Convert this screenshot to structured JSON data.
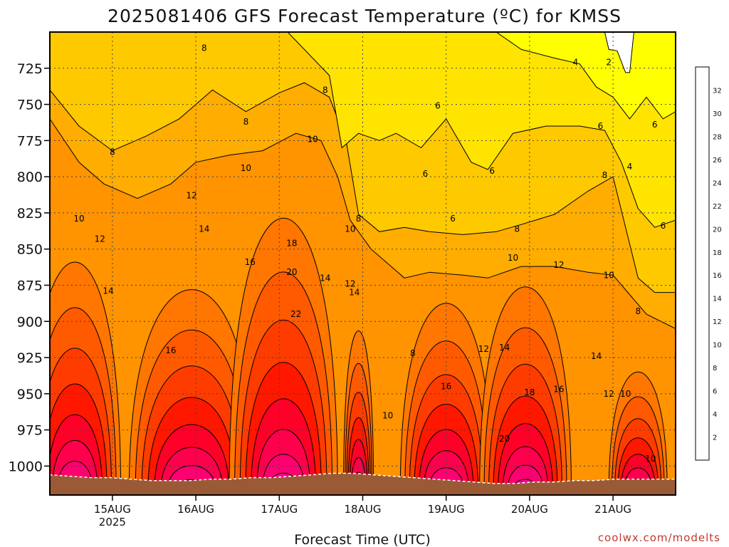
{
  "chart_data": {
    "type": "heatmap",
    "title": "2025081406 GFS Forecast Temperature (ºC) for KMSS",
    "xlabel": "Forecast Time (UTC)",
    "credit": "coolwx.com/modelts",
    "y_ticks": [
      725,
      750,
      775,
      800,
      825,
      850,
      875,
      900,
      925,
      950,
      975,
      1000
    ],
    "y_range_hpa": [
      1020,
      700
    ],
    "x_ticks": [
      {
        "label": "15AUG",
        "sub": "2025",
        "day": 1.0
      },
      {
        "label": "16AUG",
        "sub": "",
        "day": 2.0
      },
      {
        "label": "17AUG",
        "sub": "",
        "day": 3.0
      },
      {
        "label": "18AUG",
        "sub": "",
        "day": 4.0
      },
      {
        "label": "19AUG",
        "sub": "",
        "day": 5.0
      },
      {
        "label": "20AUG",
        "sub": "",
        "day": 6.0
      },
      {
        "label": "21AUG",
        "sub": "",
        "day": 7.0
      }
    ],
    "x_range_day": [
      0.25,
      7.75
    ],
    "colorbar": {
      "levels": [
        2,
        4,
        6,
        8,
        10,
        12,
        14,
        16,
        18,
        20,
        22,
        24,
        26,
        28,
        30,
        32
      ],
      "colors": [
        "#ffffff",
        "#ffff00",
        "#ffe400",
        "#ffc900",
        "#ffad00",
        "#ff9300",
        "#ff7600",
        "#ff5a00",
        "#ff3c00",
        "#ff1700",
        "#ff0028",
        "#ff004c",
        "#ff0070",
        "#ff0092",
        "#ff00b4",
        "#ff00d8",
        "#ff00ff"
      ]
    },
    "surface_hpa": [
      1006,
      1007,
      1008,
      1008,
      1009,
      1010,
      1010,
      1010,
      1009,
      1009,
      1008,
      1008,
      1007,
      1006,
      1005,
      1005,
      1006,
      1007,
      1008,
      1009,
      1010,
      1011,
      1012,
      1012,
      1011,
      1011,
      1010,
      1010,
      1009,
      1009,
      1009,
      1009
    ],
    "contour_labels": [
      {
        "text": "8",
        "day": 1.0,
        "hpa": 783
      },
      {
        "text": "8",
        "day": 2.1,
        "hpa": 711
      },
      {
        "text": "8",
        "day": 2.6,
        "hpa": 762
      },
      {
        "text": "8",
        "day": 3.55,
        "hpa": 740
      },
      {
        "text": "10",
        "day": 2.6,
        "hpa": 794
      },
      {
        "text": "10",
        "day": 3.4,
        "hpa": 774
      },
      {
        "text": "10",
        "day": 0.6,
        "hpa": 829
      },
      {
        "text": "12",
        "day": 0.85,
        "hpa": 843
      },
      {
        "text": "12",
        "day": 1.95,
        "hpa": 813
      },
      {
        "text": "14",
        "day": 2.1,
        "hpa": 836
      },
      {
        "text": "14",
        "day": 0.95,
        "hpa": 879
      },
      {
        "text": "16",
        "day": 2.65,
        "hpa": 859
      },
      {
        "text": "16",
        "day": 1.7,
        "hpa": 920
      },
      {
        "text": "18",
        "day": 3.15,
        "hpa": 846
      },
      {
        "text": "20",
        "day": 3.15,
        "hpa": 866
      },
      {
        "text": "22",
        "day": 3.2,
        "hpa": 895
      },
      {
        "text": "14",
        "day": 3.55,
        "hpa": 870
      },
      {
        "text": "12",
        "day": 3.85,
        "hpa": 874
      },
      {
        "text": "14",
        "day": 3.9,
        "hpa": 880
      },
      {
        "text": "10",
        "day": 3.85,
        "hpa": 836
      },
      {
        "text": "8",
        "day": 3.95,
        "hpa": 829
      },
      {
        "text": "6",
        "day": 4.9,
        "hpa": 751
      },
      {
        "text": "6",
        "day": 4.75,
        "hpa": 798
      },
      {
        "text": "6",
        "day": 5.08,
        "hpa": 829
      },
      {
        "text": "6",
        "day": 5.55,
        "hpa": 796
      },
      {
        "text": "8",
        "day": 4.6,
        "hpa": 922
      },
      {
        "text": "10",
        "day": 4.3,
        "hpa": 965
      },
      {
        "text": "16",
        "day": 5.0,
        "hpa": 945
      },
      {
        "text": "12",
        "day": 5.45,
        "hpa": 919
      },
      {
        "text": "14",
        "day": 5.7,
        "hpa": 918
      },
      {
        "text": "18",
        "day": 6.0,
        "hpa": 949
      },
      {
        "text": "16",
        "day": 6.35,
        "hpa": 947
      },
      {
        "text": "20",
        "day": 5.7,
        "hpa": 981
      },
      {
        "text": "8",
        "day": 5.85,
        "hpa": 836
      },
      {
        "text": "10",
        "day": 5.8,
        "hpa": 856
      },
      {
        "text": "12",
        "day": 6.35,
        "hpa": 861
      },
      {
        "text": "10",
        "day": 6.95,
        "hpa": 868
      },
      {
        "text": "8",
        "day": 6.9,
        "hpa": 799
      },
      {
        "text": "6",
        "day": 6.85,
        "hpa": 765
      },
      {
        "text": "4",
        "day": 6.55,
        "hpa": 721
      },
      {
        "text": "2",
        "day": 6.95,
        "hpa": 721
      },
      {
        "text": "4",
        "day": 7.2,
        "hpa": 793
      },
      {
        "text": "6",
        "day": 7.5,
        "hpa": 764
      },
      {
        "text": "6",
        "day": 7.6,
        "hpa": 834
      },
      {
        "text": "8",
        "day": 7.3,
        "hpa": 893
      },
      {
        "text": "14",
        "day": 6.8,
        "hpa": 924
      },
      {
        "text": "12",
        "day": 6.95,
        "hpa": 950
      },
      {
        "text": "10",
        "day": 7.15,
        "hpa": 950
      },
      {
        "text": "10",
        "day": 7.45,
        "hpa": 995
      }
    ]
  }
}
